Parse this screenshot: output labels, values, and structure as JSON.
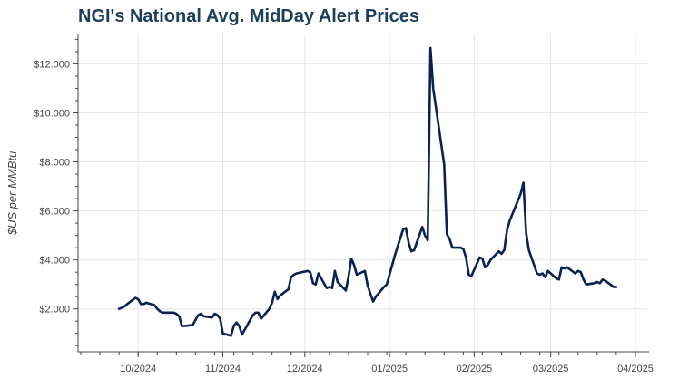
{
  "chart_data": {
    "type": "line",
    "title": "NGI's National Avg. MidDay Alert Prices",
    "xlabel": "",
    "ylabel": "$US per MMBtu",
    "xlim": [
      "2024-09-09",
      "2025-04-06"
    ],
    "ylim": [
      0.25,
      13.2
    ],
    "grid": true,
    "line_color": "#0a2253",
    "x_ticks": [
      {
        "date": "2024-10-01",
        "label": "10/2024"
      },
      {
        "date": "2024-11-01",
        "label": "11/2024"
      },
      {
        "date": "2024-12-01",
        "label": "12/2024"
      },
      {
        "date": "2025-01-01",
        "label": "01/2025"
      },
      {
        "date": "2025-02-01",
        "label": "02/2025"
      },
      {
        "date": "2025-03-01",
        "label": "03/2025"
      },
      {
        "date": "2025-04-01",
        "label": "04/2025"
      }
    ],
    "y_ticks": [
      {
        "value": 2,
        "label": "$2.000"
      },
      {
        "value": 4,
        "label": "$4.000"
      },
      {
        "value": 6,
        "label": "$6.000"
      },
      {
        "value": 8,
        "label": "$8.000"
      },
      {
        "value": 10,
        "label": "$10.000"
      },
      {
        "value": 12,
        "label": "$12.000"
      }
    ],
    "series": [
      {
        "x": [
          "2024-09-24",
          "2024-09-25",
          "2024-09-26",
          "2024-09-27",
          "2024-09-30",
          "2024-10-01",
          "2024-10-02",
          "2024-10-03",
          "2024-10-04",
          "2024-10-07",
          "2024-10-08",
          "2024-10-09",
          "2024-10-10",
          "2024-10-11",
          "2024-10-14",
          "2024-10-15",
          "2024-10-16",
          "2024-10-17",
          "2024-10-18",
          "2024-10-21",
          "2024-10-22",
          "2024-10-23",
          "2024-10-24",
          "2024-10-25",
          "2024-10-28",
          "2024-10-29",
          "2024-10-30",
          "2024-10-31",
          "2024-11-01",
          "2024-11-04",
          "2024-11-05",
          "2024-11-06",
          "2024-11-07",
          "2024-11-08",
          "2024-11-11",
          "2024-11-12",
          "2024-11-13",
          "2024-11-14",
          "2024-11-15",
          "2024-11-18",
          "2024-11-19",
          "2024-11-20",
          "2024-11-21",
          "2024-11-22",
          "2024-11-25",
          "2024-11-26",
          "2024-11-27",
          "2024-11-28",
          "2024-12-02",
          "2024-12-03",
          "2024-12-04",
          "2024-12-05",
          "2024-12-06",
          "2024-12-09",
          "2024-12-10",
          "2024-12-11",
          "2024-12-12",
          "2024-12-13",
          "2024-12-16",
          "2024-12-17",
          "2024-12-18",
          "2024-12-19",
          "2024-12-20",
          "2024-12-23",
          "2024-12-24",
          "2024-12-26",
          "2024-12-27",
          "2024-12-30",
          "2024-12-31",
          "2025-01-02",
          "2025-01-03",
          "2025-01-06",
          "2025-01-07",
          "2025-01-08",
          "2025-01-09",
          "2025-01-10",
          "2025-01-13",
          "2025-01-14",
          "2025-01-15",
          "2025-01-16",
          "2025-01-17",
          "2025-01-21",
          "2025-01-22",
          "2025-01-23",
          "2025-01-24",
          "2025-01-27",
          "2025-01-28",
          "2025-01-29",
          "2025-01-30",
          "2025-01-31",
          "2025-02-03",
          "2025-02-04",
          "2025-02-05",
          "2025-02-06",
          "2025-02-07",
          "2025-02-10",
          "2025-02-11",
          "2025-02-12",
          "2025-02-13",
          "2025-02-14",
          "2025-02-18",
          "2025-02-19",
          "2025-02-20",
          "2025-02-21",
          "2025-02-24",
          "2025-02-25",
          "2025-02-26",
          "2025-02-27",
          "2025-02-28",
          "2025-03-03",
          "2025-03-04",
          "2025-03-05",
          "2025-03-06",
          "2025-03-07",
          "2025-03-10",
          "2025-03-11",
          "2025-03-12",
          "2025-03-13",
          "2025-03-14",
          "2025-03-17",
          "2025-03-18",
          "2025-03-19",
          "2025-03-20",
          "2025-03-21",
          "2025-03-24",
          "2025-03-25"
        ],
        "values": [
          2.0,
          2.05,
          2.1,
          2.2,
          2.45,
          2.4,
          2.2,
          2.2,
          2.25,
          2.15,
          2.0,
          1.9,
          1.85,
          1.85,
          1.85,
          1.8,
          1.7,
          1.3,
          1.3,
          1.35,
          1.55,
          1.75,
          1.8,
          1.7,
          1.65,
          1.8,
          1.75,
          1.6,
          1.0,
          0.9,
          1.3,
          1.45,
          1.3,
          0.95,
          1.55,
          1.75,
          1.85,
          1.85,
          1.6,
          2.0,
          2.25,
          2.7,
          2.4,
          2.55,
          2.8,
          3.3,
          3.4,
          3.45,
          3.55,
          3.5,
          3.05,
          3.0,
          3.45,
          2.85,
          2.9,
          2.85,
          3.55,
          3.1,
          2.75,
          3.3,
          4.05,
          3.8,
          3.4,
          3.55,
          2.95,
          2.3,
          2.5,
          2.9,
          3.0,
          3.8,
          4.2,
          5.25,
          5.3,
          4.7,
          4.35,
          4.4,
          5.35,
          5.0,
          4.8,
          12.65,
          11.0,
          7.9,
          5.05,
          4.85,
          4.5,
          4.5,
          4.45,
          4.1,
          3.4,
          3.35,
          4.1,
          4.05,
          3.7,
          3.8,
          4.0,
          4.35,
          4.25,
          4.4,
          5.2,
          5.6,
          6.7,
          7.15,
          5.1,
          4.4,
          3.45,
          3.4,
          3.45,
          3.3,
          3.55,
          3.25,
          3.2,
          3.7,
          3.65,
          3.7,
          3.45,
          3.55,
          3.5,
          3.2,
          3.0,
          3.05,
          3.1,
          3.05,
          3.2,
          3.15,
          2.9,
          2.9
        ]
      }
    ]
  }
}
